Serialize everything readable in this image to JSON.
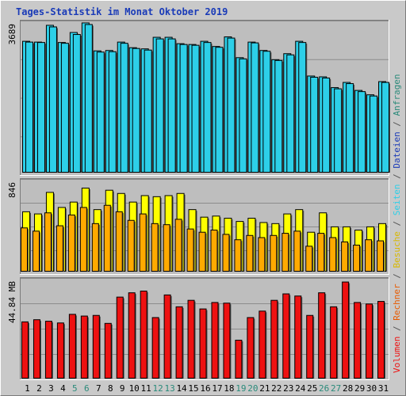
{
  "title": "Tages-Statistik im Monat Oktober 2019",
  "colors": {
    "background": "#c9c9c9",
    "plot_background": "#bebebe",
    "anfragen": "#2dcfe8",
    "dateien": "#0f5e8c",
    "seiten": "#ff8a00",
    "besuche": "#ffff00",
    "rechner": "#ffaa00",
    "volumen": "#ee1111",
    "title_text": "#1a3bb8",
    "weekend_tick": "#2a8a7a"
  },
  "right_legend": [
    {
      "text": "Anfragen",
      "color": "#2a8a7a"
    },
    {
      "text": " / ",
      "color": "#555555"
    },
    {
      "text": "Dateien",
      "color": "#1a3bb8"
    },
    {
      "text": " / ",
      "color": "#555555"
    },
    {
      "text": "Seiten",
      "color": "#2dcfe8"
    },
    {
      "text": " / ",
      "color": "#555555"
    },
    {
      "text": "Besuche",
      "color": "#d8b800"
    },
    {
      "text": " / ",
      "color": "#555555"
    },
    {
      "text": "Rechner",
      "color": "#e85a00"
    },
    {
      "text": " / ",
      "color": "#555555"
    },
    {
      "text": "Volumen",
      "color": "#ee1111"
    }
  ],
  "chart_data": [
    {
      "type": "bar",
      "name": "Anfragen/Dateien",
      "y_axis_label": "3689",
      "ylim": [
        0,
        3689
      ],
      "categories": [
        "1",
        "2",
        "3",
        "4",
        "5",
        "6",
        "7",
        "8",
        "9",
        "10",
        "11",
        "12",
        "13",
        "14",
        "15",
        "16",
        "17",
        "18",
        "19",
        "20",
        "21",
        "22",
        "23",
        "24",
        "25",
        "26",
        "27",
        "28",
        "29",
        "30",
        "31"
      ],
      "weekend_days": [
        "5",
        "6",
        "12",
        "13",
        "19",
        "20",
        "26",
        "27"
      ],
      "series": [
        {
          "name": "Anfragen",
          "values": [
            3300,
            3280,
            3700,
            3270,
            3520,
            3760,
            3060,
            3070,
            3280,
            3140,
            3110,
            3400,
            3400,
            3240,
            3220,
            3300,
            3170,
            3410,
            2890,
            3280,
            3070,
            2840,
            2990,
            3300,
            2430,
            2410,
            2140,
            2270,
            2070,
            1960,
            2290
          ]
        },
        {
          "name": "Dateien",
          "values": [
            3280,
            3270,
            3660,
            3250,
            3470,
            3720,
            3030,
            3040,
            3250,
            3120,
            3080,
            3360,
            3360,
            3220,
            3200,
            3270,
            3150,
            3380,
            2860,
            3260,
            3050,
            2820,
            2960,
            3270,
            2400,
            2380,
            2110,
            2240,
            2040,
            1930,
            2270
          ]
        }
      ]
    },
    {
      "type": "bar",
      "name": "Seiten/Besuche/Rechner",
      "y_axis_label": "846",
      "ylim": [
        0,
        846
      ],
      "categories": [
        "1",
        "2",
        "3",
        "4",
        "5",
        "6",
        "7",
        "8",
        "9",
        "10",
        "11",
        "12",
        "13",
        "14",
        "15",
        "16",
        "17",
        "18",
        "19",
        "20",
        "21",
        "22",
        "23",
        "24",
        "25",
        "26",
        "27",
        "28",
        "29",
        "30",
        "31"
      ],
      "series": [
        {
          "name": "Besuche",
          "values": [
            560,
            540,
            740,
            600,
            650,
            780,
            580,
            760,
            730,
            650,
            710,
            700,
            710,
            730,
            580,
            510,
            520,
            500,
            470,
            500,
            460,
            450,
            540,
            580,
            370,
            550,
            420,
            420,
            390,
            420,
            450
          ]
        },
        {
          "name": "Rechner",
          "values": [
            410,
            380,
            550,
            430,
            530,
            600,
            450,
            620,
            560,
            480,
            540,
            450,
            440,
            490,
            400,
            370,
            390,
            350,
            300,
            340,
            320,
            340,
            360,
            380,
            240,
            360,
            320,
            280,
            250,
            300,
            290
          ]
        }
      ]
    },
    {
      "type": "bar",
      "name": "Volumen",
      "y_axis_label": "44.84 MB",
      "ylim": [
        0,
        44.84
      ],
      "categories": [
        "1",
        "2",
        "3",
        "4",
        "5",
        "6",
        "7",
        "8",
        "9",
        "10",
        "11",
        "12",
        "13",
        "14",
        "15",
        "16",
        "17",
        "18",
        "19",
        "20",
        "21",
        "22",
        "23",
        "24",
        "25",
        "26",
        "27",
        "28",
        "29",
        "30",
        "31"
      ],
      "series": [
        {
          "name": "Volumen",
          "values": [
            26.5,
            27.5,
            26.8,
            26.0,
            30.0,
            29.2,
            29.5,
            25.8,
            38.0,
            40.0,
            40.8,
            28.5,
            39.0,
            33.5,
            36.5,
            32.5,
            35.5,
            35.2,
            18.0,
            28.5,
            31.5,
            36.5,
            39.5,
            38.5,
            29.5,
            40.0,
            33.5,
            45.0,
            35.5,
            34.8,
            36.0
          ]
        }
      ]
    }
  ]
}
